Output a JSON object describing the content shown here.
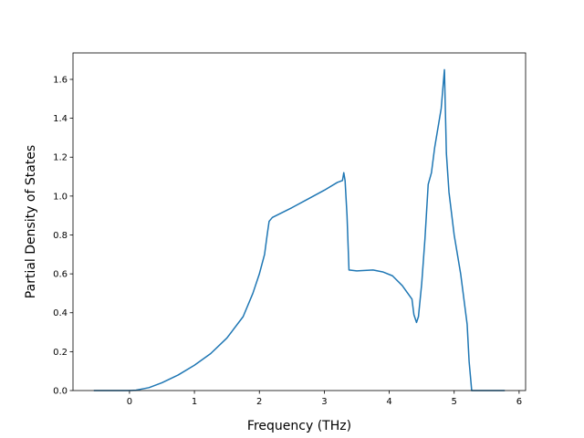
{
  "chart_data": {
    "type": "line",
    "xlabel": "Frequency (THz)",
    "ylabel": "Partial Density of States",
    "x": [
      -0.55,
      0,
      0.1,
      0.3,
      0.5,
      0.75,
      1.0,
      1.25,
      1.5,
      1.75,
      1.9,
      2.0,
      2.08,
      2.12,
      2.15,
      2.2,
      2.5,
      2.75,
      3.0,
      3.2,
      3.28,
      3.3,
      3.32,
      3.35,
      3.38,
      3.5,
      3.75,
      3.9,
      4.05,
      4.2,
      4.35,
      4.38,
      4.42,
      4.45,
      4.5,
      4.55,
      4.6,
      4.65,
      4.7,
      4.8,
      4.85,
      4.88,
      4.92,
      5.0,
      5.1,
      5.2,
      5.23,
      5.27,
      5.5,
      5.78
    ],
    "values": [
      0,
      0,
      0.002,
      0.015,
      0.04,
      0.08,
      0.13,
      0.19,
      0.27,
      0.38,
      0.5,
      0.6,
      0.7,
      0.8,
      0.87,
      0.89,
      0.94,
      0.985,
      1.03,
      1.07,
      1.08,
      1.12,
      1.08,
      0.9,
      0.62,
      0.615,
      0.62,
      0.61,
      0.59,
      0.54,
      0.47,
      0.39,
      0.35,
      0.38,
      0.55,
      0.78,
      1.06,
      1.12,
      1.25,
      1.45,
      1.65,
      1.22,
      1.02,
      0.8,
      0.6,
      0.34,
      0.15,
      0,
      0,
      0
    ],
    "color": "#1f77b4",
    "xlim": [
      -0.87,
      6.1
    ],
    "xticks": [
      0,
      1,
      2,
      3,
      4,
      5,
      6
    ],
    "ylim": [
      0,
      1.736
    ],
    "yticks": [
      {
        "value": 0,
        "label": "0.0"
      },
      0.2,
      0.4,
      0.6,
      0.8,
      {
        "value": 1,
        "label": "1.0"
      },
      1.2,
      1.4,
      1.6
    ],
    "grid": false
  }
}
